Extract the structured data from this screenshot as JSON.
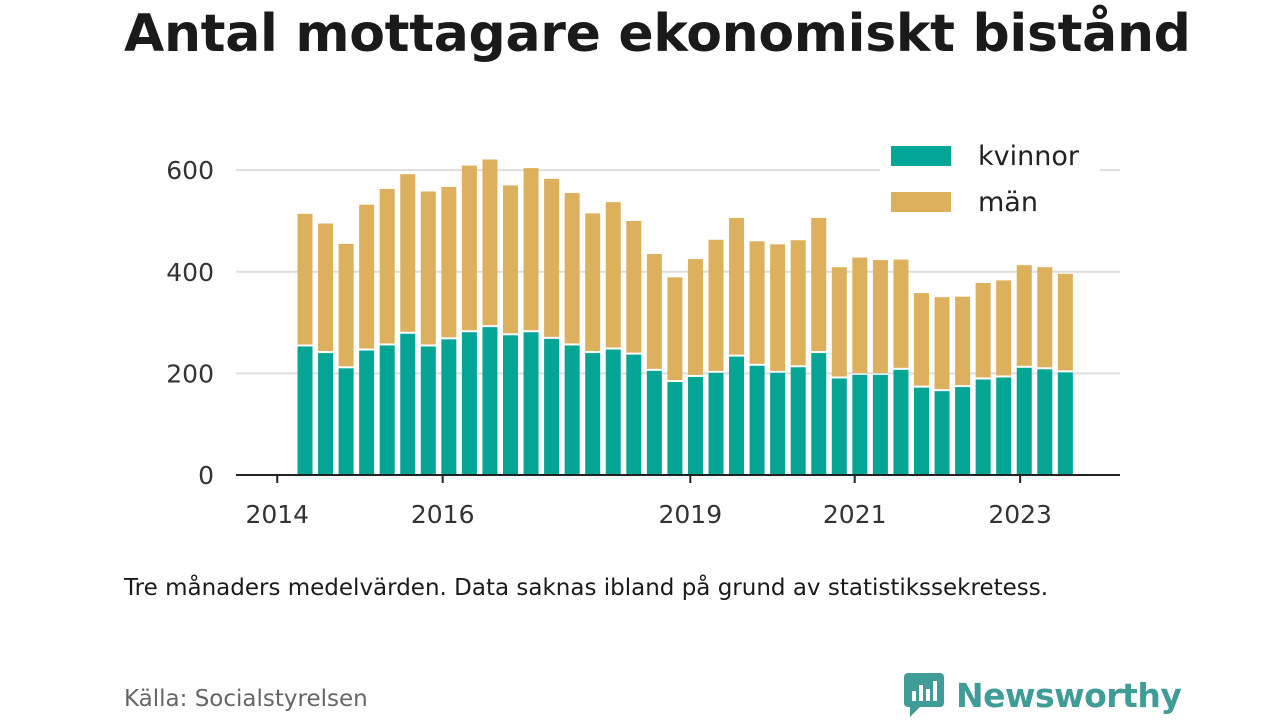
{
  "title": "Antal mottagare ekonomiskt bistånd",
  "note": "Tre månaders medelvärden. Data saknas ibland på grund av statistikssekretess.",
  "source": "Källa: Socialstyrelsen",
  "brand": {
    "name": "Newsworthy",
    "color": "#3f9c96",
    "icon": "newsworthy-logo-icon"
  },
  "colors": {
    "kvinnor": "#05a596",
    "man": "#dcb05c",
    "grid": "#dddddd",
    "axis": "#222222"
  },
  "chart_data": {
    "type": "bar",
    "stacked": true,
    "title": "Antal mottagare ekonomiskt bistånd",
    "xlabel": "",
    "ylabel": "",
    "ylim": [
      0,
      620
    ],
    "yticks": [
      0,
      200,
      400,
      600
    ],
    "xticks": [
      "2014",
      "2016",
      "2019",
      "2021",
      "2023"
    ],
    "grid": true,
    "legend": "top-right",
    "series": [
      {
        "name": "kvinnor",
        "values": [
          253,
          240,
          210,
          245,
          255,
          278,
          253,
          267,
          281,
          291,
          275,
          281,
          268,
          255,
          240,
          247,
          237,
          205,
          183,
          193,
          201,
          233,
          215,
          201,
          212,
          240,
          190,
          197,
          197,
          207,
          172,
          165,
          173,
          188,
          192,
          211,
          208,
          202
        ]
      },
      {
        "name": "män",
        "values": [
          261,
          255,
          245,
          287,
          308,
          314,
          305,
          300,
          328,
          330,
          295,
          323,
          315,
          300,
          275,
          290,
          263,
          230,
          206,
          232,
          262,
          273,
          245,
          253,
          250,
          266,
          219,
          231,
          226,
          217,
          186,
          185,
          178,
          190,
          191,
          202,
          201,
          194
        ]
      }
    ]
  }
}
